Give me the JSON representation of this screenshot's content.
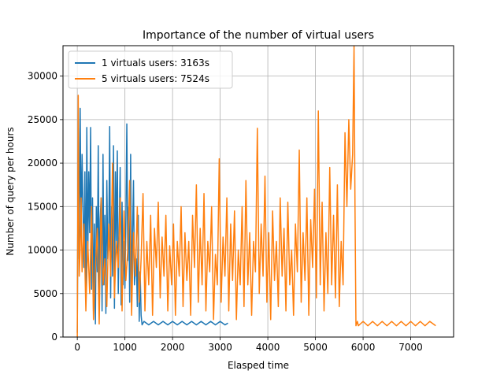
{
  "chart_data": {
    "type": "line",
    "title": "Importance of the number of virtual users",
    "xlabel": "Elasped time",
    "ylabel": "Number of query per hours",
    "xlim": [
      -300,
      7900
    ],
    "ylim": [
      0,
      33500
    ],
    "x_ticks": [
      0,
      1000,
      2000,
      3000,
      4000,
      5000,
      6000,
      7000
    ],
    "y_ticks": [
      0,
      5000,
      10000,
      15000,
      20000,
      25000,
      30000
    ],
    "grid": true,
    "legend_position": "upper left",
    "series": [
      {
        "name": "1 virtuals users: 3163s",
        "color": "#1f77b4",
        "x": [
          0,
          20,
          40,
          60,
          80,
          100,
          120,
          140,
          160,
          180,
          200,
          220,
          240,
          260,
          280,
          300,
          320,
          340,
          360,
          380,
          400,
          420,
          440,
          460,
          480,
          500,
          520,
          540,
          560,
          580,
          600,
          620,
          640,
          660,
          680,
          700,
          720,
          740,
          760,
          780,
          800,
          820,
          840,
          860,
          880,
          900,
          920,
          940,
          960,
          980,
          1000,
          1020,
          1040,
          1060,
          1080,
          1100,
          1120,
          1140,
          1160,
          1180,
          1200,
          1220,
          1240,
          1260,
          1280,
          1300,
          1320,
          1340,
          1360,
          1400,
          1500,
          1600,
          1700,
          1800,
          1900,
          2000,
          2100,
          2200,
          2300,
          2400,
          2500,
          2600,
          2700,
          2800,
          2900,
          3000,
          3100,
          3163
        ],
        "y": [
          500,
          24000,
          9000,
          26300,
          12000,
          21000,
          15000,
          8000,
          19000,
          4700,
          24100,
          9000,
          19000,
          12000,
          24100,
          5500,
          16000,
          3000,
          13000,
          1500,
          15000,
          7500,
          22000,
          5000,
          13500,
          16000,
          3000,
          21000,
          6000,
          14000,
          2700,
          18000,
          9000,
          11000,
          24200,
          4500,
          15000,
          7000,
          22000,
          3300,
          19000,
          11000,
          21400,
          5000,
          12500,
          19500,
          3700,
          15500,
          6000,
          11000,
          5600,
          13500,
          24500,
          8800,
          15000,
          4000,
          21000,
          3500,
          12000,
          18000,
          6000,
          8000,
          9000,
          3500,
          14000,
          1800,
          7500,
          2500,
          1400,
          1800,
          1400,
          1800,
          1400,
          1800,
          1400,
          1800,
          1400,
          1800,
          1400,
          1800,
          1400,
          1800,
          1400,
          1800,
          1400,
          1800,
          1400,
          1600
        ]
      },
      {
        "name": "5 virtuals users: 7524s",
        "color": "#ff7f0e",
        "x": [
          0,
          20,
          40,
          60,
          80,
          100,
          140,
          180,
          220,
          260,
          300,
          340,
          380,
          420,
          460,
          500,
          540,
          580,
          620,
          660,
          700,
          740,
          780,
          820,
          860,
          900,
          940,
          980,
          1020,
          1060,
          1100,
          1140,
          1180,
          1220,
          1260,
          1300,
          1340,
          1380,
          1420,
          1460,
          1500,
          1540,
          1580,
          1620,
          1660,
          1700,
          1740,
          1780,
          1820,
          1860,
          1900,
          1940,
          1980,
          2020,
          2060,
          2100,
          2140,
          2180,
          2220,
          2260,
          2300,
          2340,
          2380,
          2420,
          2460,
          2500,
          2540,
          2580,
          2620,
          2660,
          2700,
          2740,
          2780,
          2820,
          2860,
          2900,
          2940,
          2980,
          3020,
          3060,
          3100,
          3140,
          3180,
          3220,
          3260,
          3300,
          3340,
          3380,
          3420,
          3460,
          3500,
          3540,
          3580,
          3620,
          3660,
          3700,
          3740,
          3780,
          3820,
          3860,
          3900,
          3940,
          3980,
          4020,
          4060,
          4100,
          4140,
          4180,
          4220,
          4260,
          4300,
          4340,
          4380,
          4420,
          4460,
          4500,
          4540,
          4580,
          4620,
          4660,
          4700,
          4740,
          4780,
          4820,
          4860,
          4900,
          4940,
          4980,
          5020,
          5060,
          5100,
          5140,
          5180,
          5220,
          5260,
          5300,
          5340,
          5380,
          5420,
          5460,
          5500,
          5540,
          5580,
          5620,
          5660,
          5700,
          5740,
          5780,
          5810,
          5830,
          5850,
          5880,
          5900,
          6000,
          6100,
          6200,
          6300,
          6400,
          6500,
          6600,
          6700,
          6800,
          6900,
          7000,
          7100,
          7200,
          7300,
          7400,
          7524
        ],
        "y": [
          0,
          27800,
          7000,
          10000,
          16000,
          7500,
          13000,
          3000,
          11000,
          5000,
          15000,
          2000,
          8000,
          12500,
          1500,
          16000,
          6000,
          9000,
          3500,
          13000,
          7000,
          20000,
          4500,
          11000,
          8000,
          16000,
          3000,
          14500,
          6500,
          10000,
          18000,
          2500,
          12000,
          7000,
          15000,
          4000,
          9000,
          16500,
          3000,
          11000,
          6000,
          14000,
          2500,
          12500,
          8000,
          15500,
          4500,
          11500,
          7000,
          14000,
          3000,
          10500,
          6000,
          13000,
          2500,
          11000,
          7000,
          15000,
          3500,
          12000,
          6500,
          11000,
          2500,
          14000,
          8000,
          17500,
          4000,
          12500,
          6000,
          16500,
          3000,
          11000,
          7500,
          15000,
          2000,
          9500,
          6000,
          20500,
          4000,
          11500,
          7000,
          16000,
          3000,
          13000,
          6500,
          14500,
          2000,
          10000,
          6000,
          15000,
          3500,
          18000,
          6000,
          12000,
          2500,
          11000,
          7500,
          24000,
          5000,
          13000,
          7000,
          18500,
          4000,
          12000,
          2000,
          14500,
          6500,
          11000,
          3500,
          16000,
          7000,
          12500,
          3000,
          15500,
          6000,
          10000,
          2500,
          13000,
          7500,
          21500,
          4000,
          12000,
          6500,
          16000,
          2500,
          13500,
          8000,
          17000,
          4500,
          26000,
          6000,
          15500,
          3000,
          12000,
          5000,
          19500,
          6000,
          14000,
          4500,
          17500,
          3500,
          11000,
          6000,
          23500,
          15000,
          25000,
          17000,
          21000,
          33500,
          15000,
          1300,
          1800,
          1300,
          1800,
          1300,
          1800,
          1300,
          1800,
          1300,
          1800,
          1300,
          1800,
          1300,
          1800,
          1300,
          1800,
          1300,
          1800,
          1300
        ]
      }
    ]
  }
}
